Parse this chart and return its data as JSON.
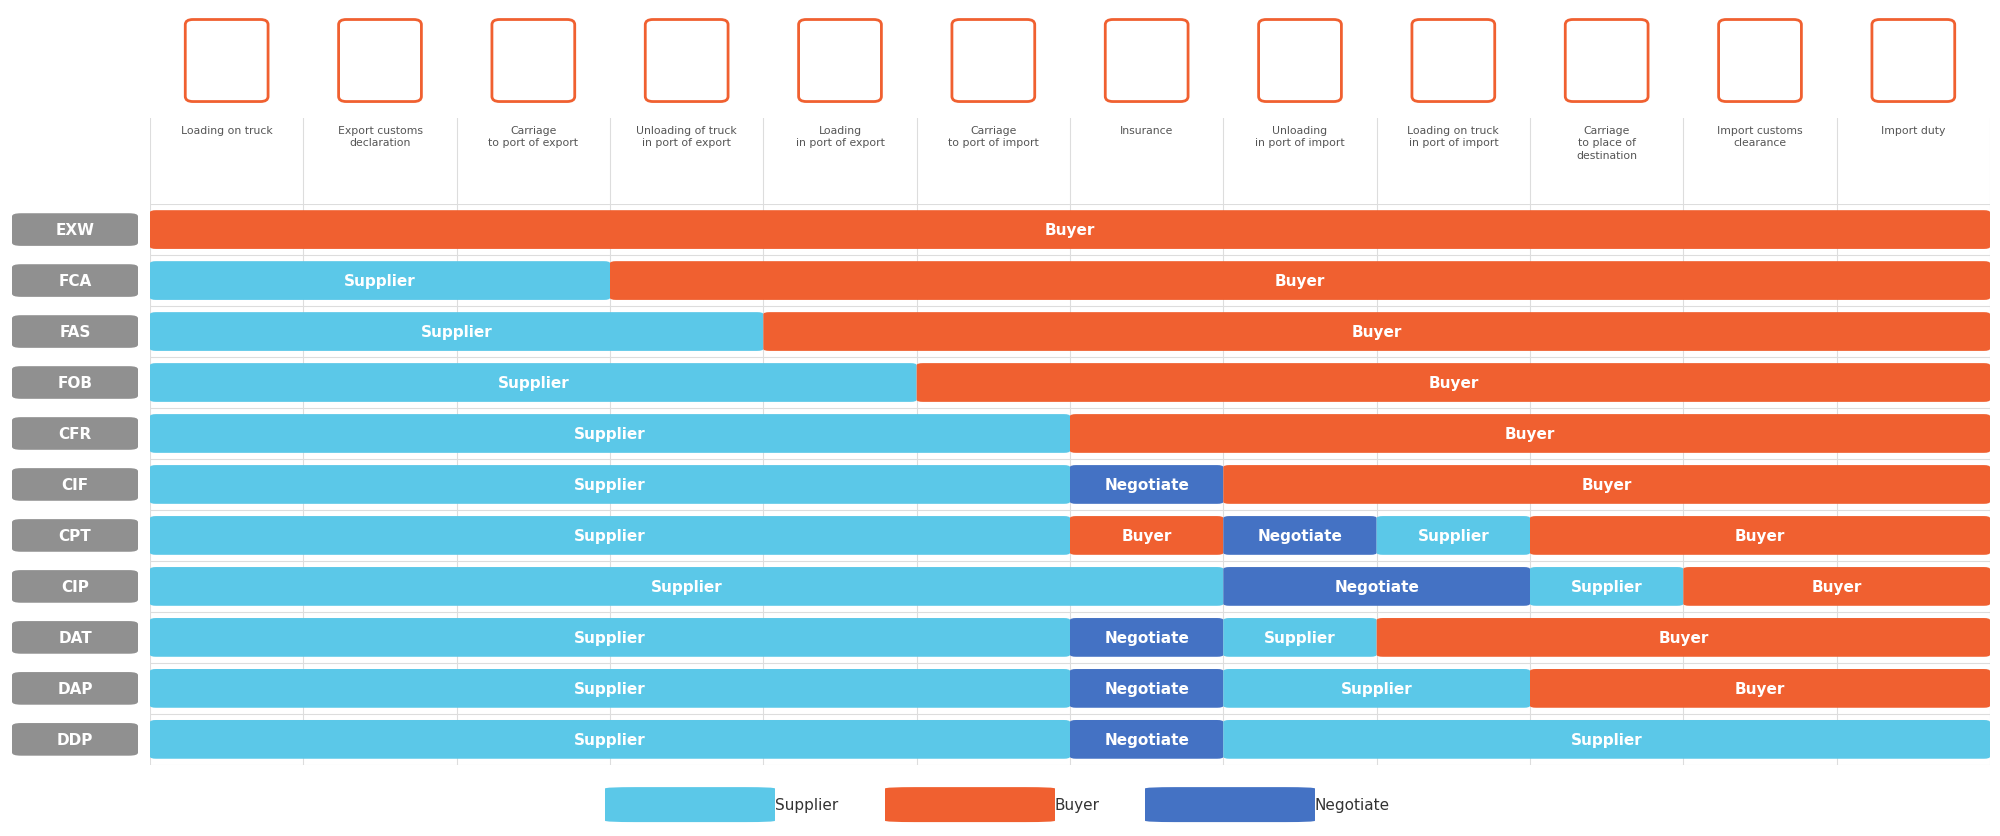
{
  "columns": [
    "Loading on truck",
    "Export customs\ndeclaration",
    "Carriage\nto port of export",
    "Unloading of truck\nin port of export",
    "Loading\nin port of export",
    "Carriage\nto port of import",
    "Insurance",
    "Unloading\nin port of import",
    "Loading on truck\nin port of import",
    "Carriage\nto place of\ndestination",
    "Import customs\nclearance",
    "Import duty"
  ],
  "rows": [
    {
      "label": "EXW",
      "segments": [
        {
          "party": "Buyer",
          "start": 0,
          "end": 12
        }
      ]
    },
    {
      "label": "FCA",
      "segments": [
        {
          "party": "Supplier",
          "start": 0,
          "end": 3
        },
        {
          "party": "Buyer",
          "start": 3,
          "end": 12
        }
      ]
    },
    {
      "label": "FAS",
      "segments": [
        {
          "party": "Supplier",
          "start": 0,
          "end": 4
        },
        {
          "party": "Buyer",
          "start": 4,
          "end": 12
        }
      ]
    },
    {
      "label": "FOB",
      "segments": [
        {
          "party": "Supplier",
          "start": 0,
          "end": 5
        },
        {
          "party": "Buyer",
          "start": 5,
          "end": 12
        }
      ]
    },
    {
      "label": "CFR",
      "segments": [
        {
          "party": "Supplier",
          "start": 0,
          "end": 6
        },
        {
          "party": "Buyer",
          "start": 6,
          "end": 12
        }
      ]
    },
    {
      "label": "CIF",
      "segments": [
        {
          "party": "Supplier",
          "start": 0,
          "end": 6
        },
        {
          "party": "Negotiate",
          "start": 6,
          "end": 7
        },
        {
          "party": "Buyer",
          "start": 7,
          "end": 12
        }
      ]
    },
    {
      "label": "CPT",
      "segments": [
        {
          "party": "Supplier",
          "start": 0,
          "end": 6
        },
        {
          "party": "Buyer",
          "start": 6,
          "end": 7
        },
        {
          "party": "Negotiate",
          "start": 7,
          "end": 8
        },
        {
          "party": "Supplier",
          "start": 8,
          "end": 9
        },
        {
          "party": "Buyer",
          "start": 9,
          "end": 12
        }
      ]
    },
    {
      "label": "CIP",
      "segments": [
        {
          "party": "Supplier",
          "start": 0,
          "end": 7
        },
        {
          "party": "Negotiate",
          "start": 7,
          "end": 9
        },
        {
          "party": "Supplier",
          "start": 9,
          "end": 10
        },
        {
          "party": "Buyer",
          "start": 10,
          "end": 12
        }
      ]
    },
    {
      "label": "DAT",
      "segments": [
        {
          "party": "Supplier",
          "start": 0,
          "end": 6
        },
        {
          "party": "Negotiate",
          "start": 6,
          "end": 7
        },
        {
          "party": "Supplier",
          "start": 7,
          "end": 8
        },
        {
          "party": "Buyer",
          "start": 8,
          "end": 12
        }
      ]
    },
    {
      "label": "DAP",
      "segments": [
        {
          "party": "Supplier",
          "start": 0,
          "end": 6
        },
        {
          "party": "Negotiate",
          "start": 6,
          "end": 7
        },
        {
          "party": "Supplier",
          "start": 7,
          "end": 9
        },
        {
          "party": "Buyer",
          "start": 9,
          "end": 12
        }
      ]
    },
    {
      "label": "DDP",
      "segments": [
        {
          "party": "Supplier",
          "start": 0,
          "end": 6
        },
        {
          "party": "Negotiate",
          "start": 6,
          "end": 7
        },
        {
          "party": "Supplier",
          "start": 7,
          "end": 12
        }
      ]
    }
  ],
  "colors": {
    "Supplier": "#5BC8E8",
    "Buyer": "#F06030",
    "Negotiate": "#4472C4"
  },
  "background_color": "#FFFFFF",
  "label_bg_color": "#909090",
  "label_text_color": "#FFFFFF",
  "grid_color": "#DDDDDD",
  "header_text_color": "#555555",
  "n_cols": 12,
  "n_rows": 11,
  "legend_labels": [
    "Supplier",
    "Buyer",
    "Negotiate"
  ]
}
